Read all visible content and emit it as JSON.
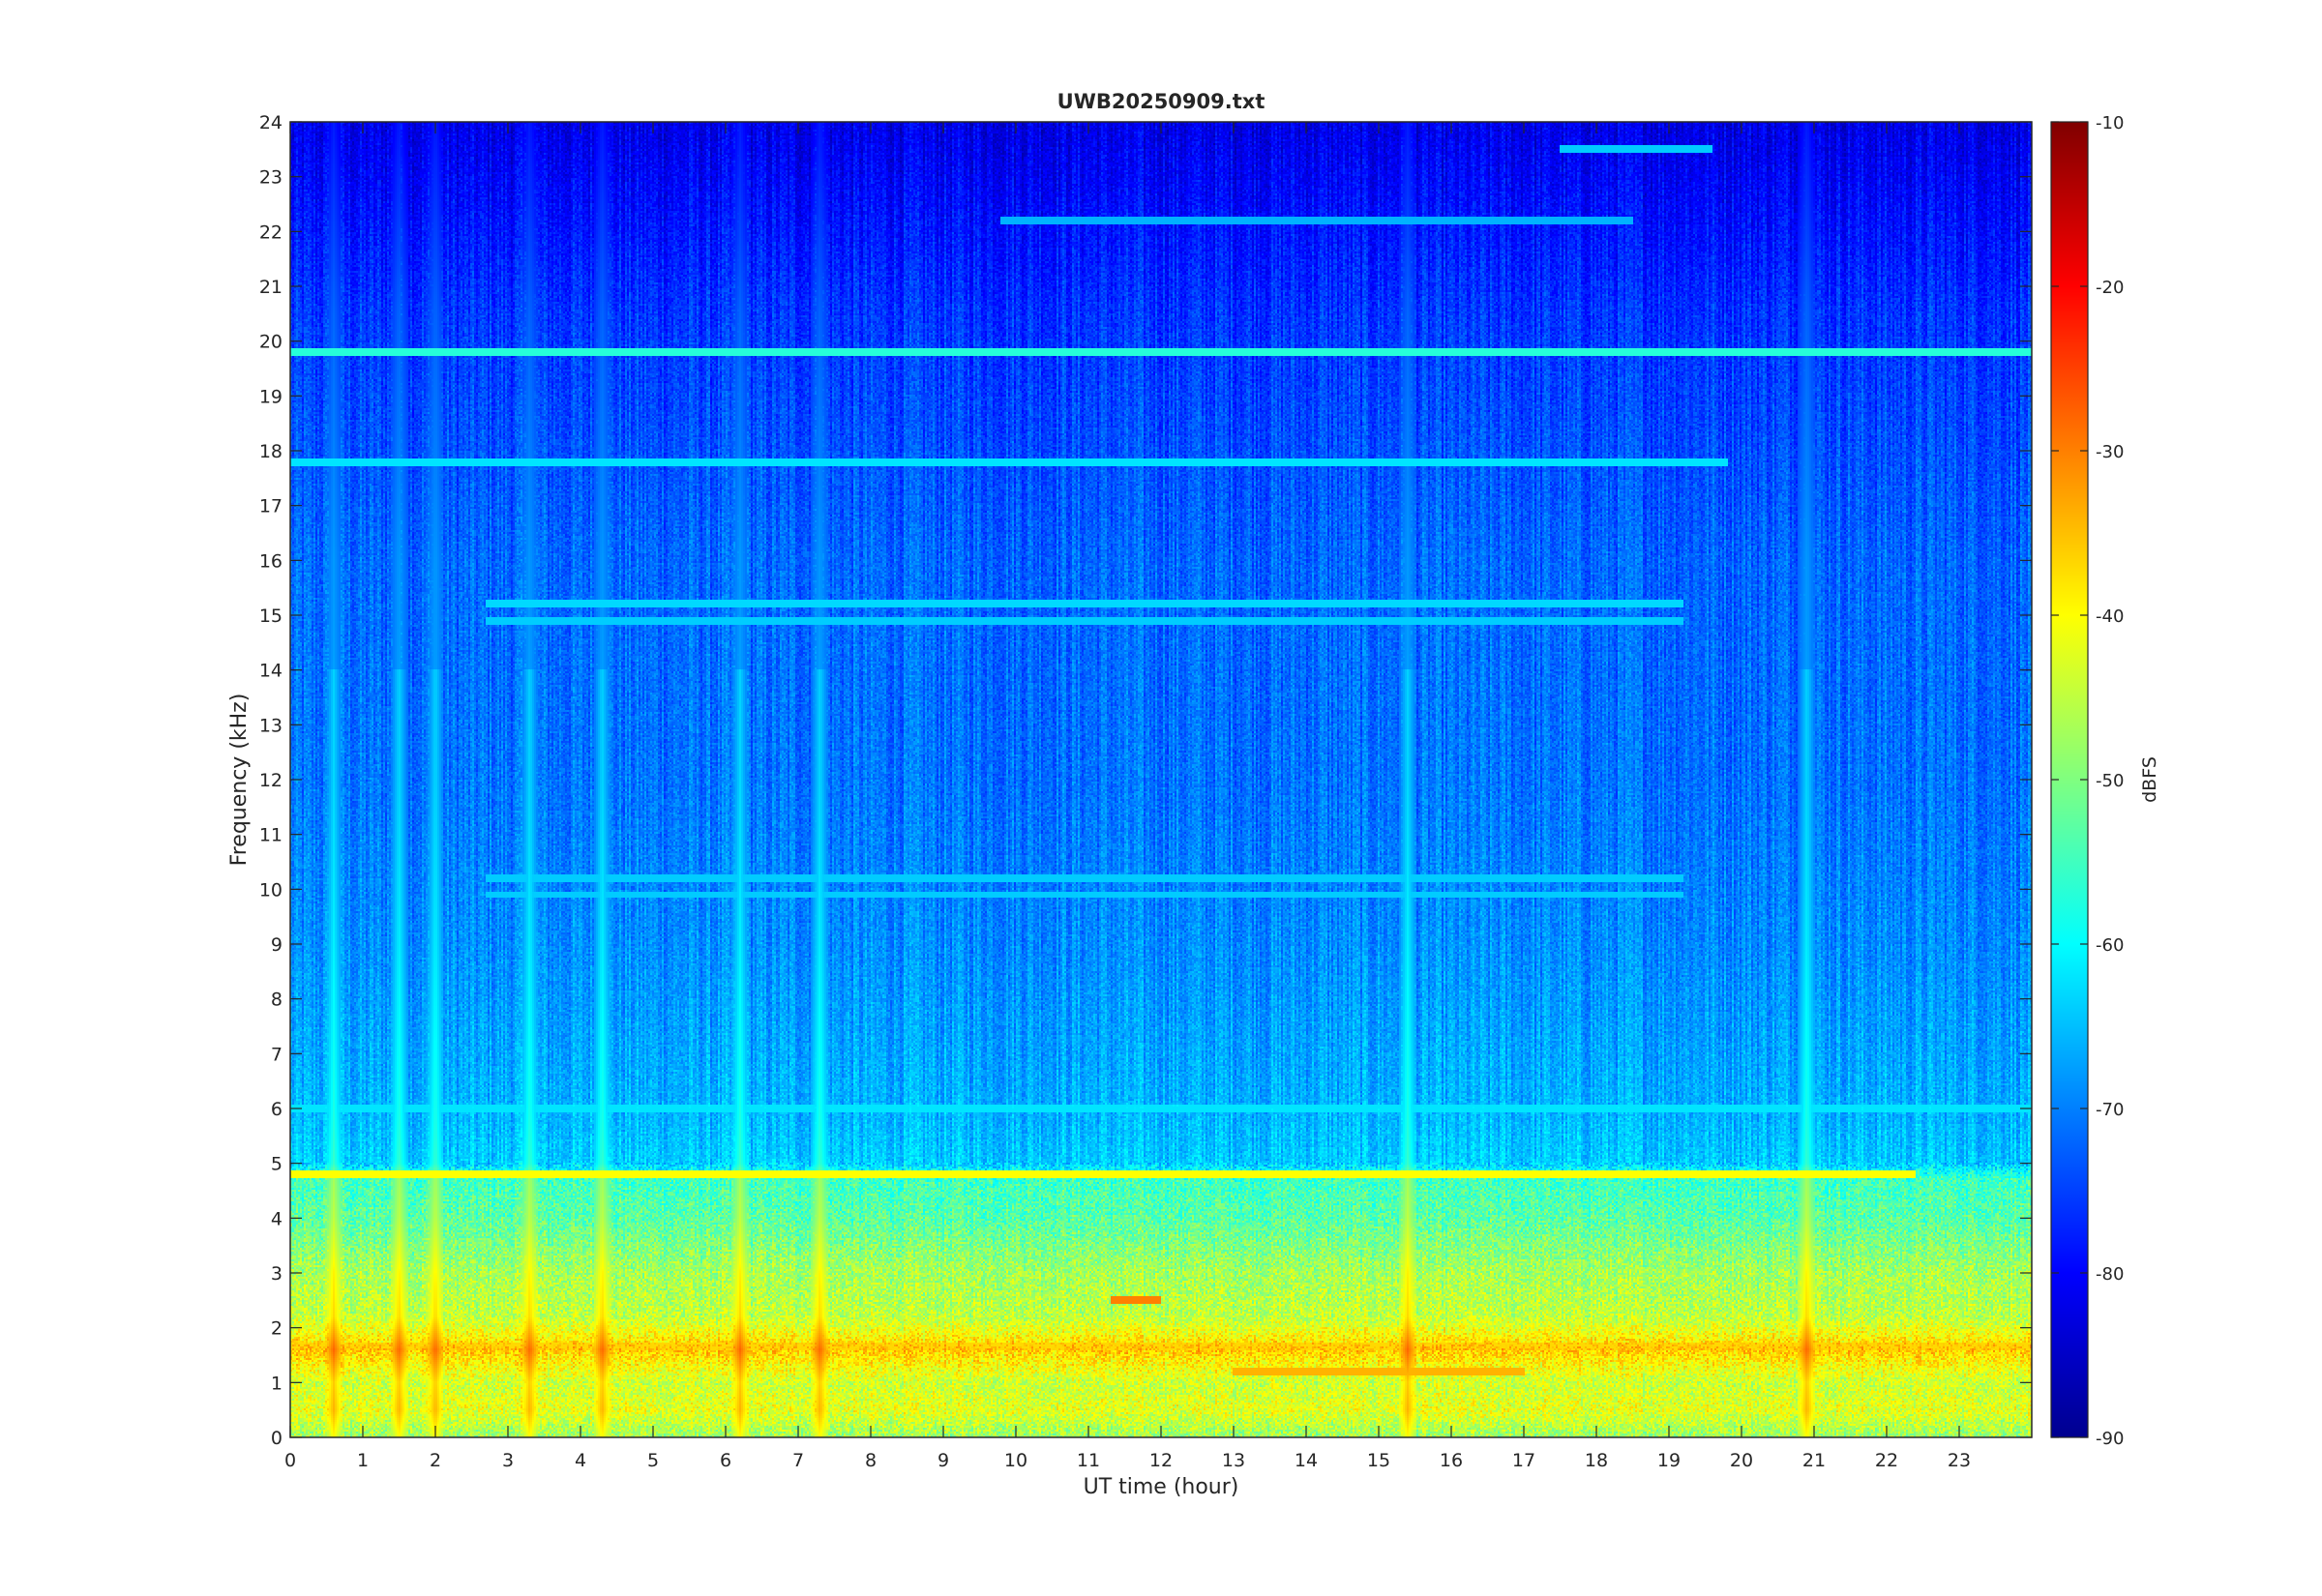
{
  "chart_data": {
    "type": "heatmap",
    "title": "UWB20250909.txt",
    "xlabel": "UT time (hour)",
    "ylabel": "Frequency (kHz)",
    "colorbar_label": "dBFS",
    "xlim": [
      0,
      24
    ],
    "ylim": [
      0,
      24
    ],
    "clim": [
      -90,
      -10
    ],
    "colormap": "jet",
    "x_ticks": [
      0,
      1,
      2,
      3,
      4,
      5,
      6,
      7,
      8,
      9,
      10,
      11,
      12,
      13,
      14,
      15,
      16,
      17,
      18,
      19,
      20,
      21,
      22,
      23
    ],
    "y_ticks": [
      0,
      1,
      2,
      3,
      4,
      5,
      6,
      7,
      8,
      9,
      10,
      11,
      12,
      13,
      14,
      15,
      16,
      17,
      18,
      19,
      20,
      21,
      22,
      23,
      24
    ],
    "colorbar_ticks": [
      -90,
      -80,
      -70,
      -60,
      -50,
      -40,
      -30,
      -20,
      -10
    ],
    "frequency_profile_dBFS": [
      {
        "f": 0.0,
        "db": -48
      },
      {
        "f": 0.5,
        "db": -42
      },
      {
        "f": 1.0,
        "db": -44
      },
      {
        "f": 1.6,
        "db": -36
      },
      {
        "f": 2.2,
        "db": -45
      },
      {
        "f": 3.0,
        "db": -47
      },
      {
        "f": 4.0,
        "db": -53
      },
      {
        "f": 4.7,
        "db": -55
      },
      {
        "f": 5.0,
        "db": -64
      },
      {
        "f": 6.0,
        "db": -66
      },
      {
        "f": 7.0,
        "db": -67
      },
      {
        "f": 9.0,
        "db": -69
      },
      {
        "f": 12.0,
        "db": -71
      },
      {
        "f": 16.0,
        "db": -72
      },
      {
        "f": 20.5,
        "db": -76
      },
      {
        "f": 24.0,
        "db": -82
      }
    ],
    "spectral_lines": [
      {
        "f_khz": 19.8,
        "t_start": 0,
        "t_end": 24,
        "db": -57
      },
      {
        "f_khz": 4.8,
        "t_start": 0,
        "t_end": 22.4,
        "db": -40
      },
      {
        "f_khz": 17.8,
        "t_start": 0,
        "t_end": 19.8,
        "db": -62
      },
      {
        "f_khz": 23.5,
        "t_start": 17.5,
        "t_end": 19.6,
        "db": -64
      },
      {
        "f_khz": 22.2,
        "t_start": 9.8,
        "t_end": 18.5,
        "db": -66
      },
      {
        "f_khz": 15.2,
        "t_start": 2.7,
        "t_end": 19.2,
        "db": -63
      },
      {
        "f_khz": 14.9,
        "t_start": 2.7,
        "t_end": 19.2,
        "db": -64
      },
      {
        "f_khz": 10.2,
        "t_start": 2.7,
        "t_end": 19.2,
        "db": -64
      },
      {
        "f_khz": 9.9,
        "t_start": 2.7,
        "t_end": 19.2,
        "db": -64
      },
      {
        "f_khz": 6.0,
        "t_start": 0,
        "t_end": 24,
        "db": -62
      },
      {
        "f_khz": 2.5,
        "t_start": 11.3,
        "t_end": 12.0,
        "db": -30
      },
      {
        "f_khz": 1.2,
        "t_start": 13.0,
        "t_end": 17.0,
        "db": -34
      },
      {
        "f_khz": 1.65,
        "t_start": 0,
        "t_end": 24,
        "db": -37
      }
    ],
    "broadband_events_hour": [
      0.6,
      1.5,
      2.0,
      3.3,
      4.3,
      6.2,
      7.3,
      15.4,
      20.9
    ]
  }
}
